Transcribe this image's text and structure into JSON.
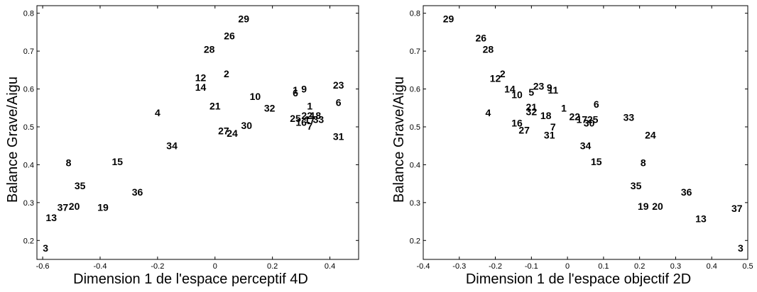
{
  "chart_data": [
    {
      "type": "scatter",
      "title": "",
      "xlabel": "Dimension 1 de l'espace perceptif 4D",
      "ylabel": "Balance Grave/Aigu",
      "xlim": [
        -0.62,
        0.5
      ],
      "ylim": [
        0.15,
        0.82
      ],
      "xticks": [
        "-0.6",
        "-0.4",
        "-0.2",
        "0",
        "0.2",
        "0.4"
      ],
      "yticks": [
        "0.2",
        "0.3",
        "0.4",
        "0.5",
        "0.6",
        "0.7",
        "0.8"
      ],
      "xtick_values": [
        -0.6,
        -0.4,
        -0.2,
        0,
        0.2,
        0.4
      ],
      "ytick_values": [
        0.2,
        0.3,
        0.4,
        0.5,
        0.6,
        0.7,
        0.8
      ],
      "grid": false,
      "points": [
        {
          "label": "29",
          "x": 0.1,
          "y": 0.785
        },
        {
          "label": "26",
          "x": 0.05,
          "y": 0.74
        },
        {
          "label": "28",
          "x": -0.02,
          "y": 0.705
        },
        {
          "label": "2",
          "x": 0.04,
          "y": 0.64
        },
        {
          "label": "12",
          "x": -0.05,
          "y": 0.63
        },
        {
          "label": "14",
          "x": -0.05,
          "y": 0.605
        },
        {
          "label": "10",
          "x": 0.14,
          "y": 0.58
        },
        {
          "label": "21",
          "x": 0.0,
          "y": 0.555
        },
        {
          "label": "32",
          "x": 0.19,
          "y": 0.55
        },
        {
          "label": "4",
          "x": -0.2,
          "y": 0.537
        },
        {
          "label": "1",
          "x": 0.28,
          "y": 0.597
        },
        {
          "label": "6",
          "x": 0.28,
          "y": 0.59
        },
        {
          "label": "9",
          "x": 0.31,
          "y": 0.6
        },
        {
          "label": "23",
          "x": 0.43,
          "y": 0.61
        },
        {
          "label": "6",
          "x": 0.43,
          "y": 0.565
        },
        {
          "label": "1",
          "x": 0.33,
          "y": 0.555
        },
        {
          "label": "22",
          "x": 0.32,
          "y": 0.53
        },
        {
          "label": "18",
          "x": 0.35,
          "y": 0.53
        },
        {
          "label": "25",
          "x": 0.28,
          "y": 0.522
        },
        {
          "label": "16",
          "x": 0.3,
          "y": 0.512
        },
        {
          "label": "17",
          "x": 0.33,
          "y": 0.52
        },
        {
          "label": "33",
          "x": 0.36,
          "y": 0.52
        },
        {
          "label": "7",
          "x": 0.33,
          "y": 0.502
        },
        {
          "label": "30",
          "x": 0.11,
          "y": 0.504
        },
        {
          "label": "27",
          "x": 0.03,
          "y": 0.49
        },
        {
          "label": "24",
          "x": 0.06,
          "y": 0.483
        },
        {
          "label": "31",
          "x": 0.43,
          "y": 0.475
        },
        {
          "label": "34",
          "x": -0.15,
          "y": 0.45
        },
        {
          "label": "8",
          "x": -0.51,
          "y": 0.405
        },
        {
          "label": "15",
          "x": -0.34,
          "y": 0.408
        },
        {
          "label": "35",
          "x": -0.47,
          "y": 0.345
        },
        {
          "label": "36",
          "x": -0.27,
          "y": 0.328
        },
        {
          "label": "37",
          "x": -0.53,
          "y": 0.288
        },
        {
          "label": "20",
          "x": -0.49,
          "y": 0.29
        },
        {
          "label": "19",
          "x": -0.39,
          "y": 0.288
        },
        {
          "label": "13",
          "x": -0.57,
          "y": 0.26
        },
        {
          "label": "3",
          "x": -0.59,
          "y": 0.18
        }
      ]
    },
    {
      "type": "scatter",
      "title": "",
      "xlabel": "Dimension 1 de l'espace objectif 2D",
      "ylabel": "Balance Grave/Aigu",
      "xlim": [
        -0.4,
        0.5
      ],
      "ylim": [
        0.15,
        0.82
      ],
      "xticks": [
        "-0.4",
        "-0.3",
        "-0.2",
        "-0.1",
        "0",
        "0.1",
        "0.2",
        "0.3",
        "0.4",
        "0.5"
      ],
      "yticks": [
        "0.2",
        "0.3",
        "0.4",
        "0.5",
        "0.6",
        "0.7",
        "0.8"
      ],
      "xtick_values": [
        -0.4,
        -0.3,
        -0.2,
        -0.1,
        0,
        0.1,
        0.2,
        0.3,
        0.4,
        0.5
      ],
      "ytick_values": [
        0.2,
        0.3,
        0.4,
        0.5,
        0.6,
        0.7,
        0.8
      ],
      "grid": false,
      "points": [
        {
          "label": "29",
          "x": -0.33,
          "y": 0.785
        },
        {
          "label": "26",
          "x": -0.24,
          "y": 0.735
        },
        {
          "label": "28",
          "x": -0.22,
          "y": 0.705
        },
        {
          "label": "2",
          "x": -0.18,
          "y": 0.64
        },
        {
          "label": "12",
          "x": -0.2,
          "y": 0.628
        },
        {
          "label": "14",
          "x": -0.16,
          "y": 0.6
        },
        {
          "label": "23",
          "x": -0.08,
          "y": 0.608
        },
        {
          "label": "9",
          "x": -0.05,
          "y": 0.604
        },
        {
          "label": "5",
          "x": -0.1,
          "y": 0.592
        },
        {
          "label": "11",
          "x": -0.04,
          "y": 0.597
        },
        {
          "label": "10",
          "x": -0.14,
          "y": 0.585
        },
        {
          "label": "6",
          "x": 0.08,
          "y": 0.56
        },
        {
          "label": "21",
          "x": -0.1,
          "y": 0.552
        },
        {
          "label": "32",
          "x": -0.1,
          "y": 0.54
        },
        {
          "label": "1",
          "x": -0.01,
          "y": 0.55
        },
        {
          "label": "4",
          "x": -0.22,
          "y": 0.537
        },
        {
          "label": "18",
          "x": -0.06,
          "y": 0.53
        },
        {
          "label": "22",
          "x": 0.02,
          "y": 0.527
        },
        {
          "label": "17",
          "x": 0.04,
          "y": 0.52
        },
        {
          "label": "25",
          "x": 0.07,
          "y": 0.52
        },
        {
          "label": "33",
          "x": 0.17,
          "y": 0.525
        },
        {
          "label": "30",
          "x": 0.06,
          "y": 0.51
        },
        {
          "label": "16",
          "x": -0.14,
          "y": 0.51
        },
        {
          "label": "7",
          "x": -0.04,
          "y": 0.5
        },
        {
          "label": "27",
          "x": -0.12,
          "y": 0.492
        },
        {
          "label": "31",
          "x": -0.05,
          "y": 0.478
        },
        {
          "label": "24",
          "x": 0.23,
          "y": 0.478
        },
        {
          "label": "34",
          "x": 0.05,
          "y": 0.45
        },
        {
          "label": "15",
          "x": 0.08,
          "y": 0.408
        },
        {
          "label": "8",
          "x": 0.21,
          "y": 0.405
        },
        {
          "label": "35",
          "x": 0.19,
          "y": 0.345
        },
        {
          "label": "36",
          "x": 0.33,
          "y": 0.328
        },
        {
          "label": "19",
          "x": 0.21,
          "y": 0.29
        },
        {
          "label": "20",
          "x": 0.25,
          "y": 0.29
        },
        {
          "label": "37",
          "x": 0.47,
          "y": 0.285
        },
        {
          "label": "13",
          "x": 0.37,
          "y": 0.258
        },
        {
          "label": "3",
          "x": 0.48,
          "y": 0.18
        }
      ]
    }
  ]
}
